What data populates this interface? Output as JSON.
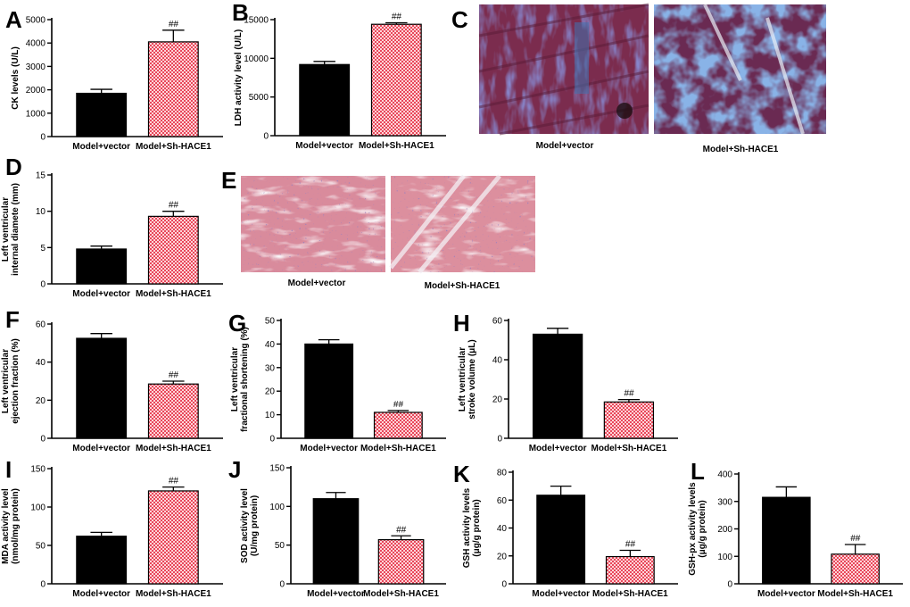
{
  "colors": {
    "control_bar": "#000000",
    "treated_bar": "#e8475a",
    "treated_check": "#ffd4d8",
    "masson_red": "#7b2c4e",
    "masson_blue": "#3f74b3",
    "he_pink": "#d98b9c",
    "he_nuclei": "#5b3c7a"
  },
  "panels": {
    "A": {
      "letter": "A"
    },
    "B": {
      "letter": "B"
    },
    "C": {
      "letter": "C"
    },
    "D": {
      "letter": "D"
    },
    "E": {
      "letter": "E"
    },
    "F": {
      "letter": "F"
    },
    "G": {
      "letter": "G"
    },
    "H": {
      "letter": "H"
    },
    "I": {
      "letter": "I"
    },
    "J": {
      "letter": "J"
    },
    "K": {
      "letter": "K"
    },
    "L": {
      "letter": "L"
    }
  },
  "images": {
    "C": {
      "captions": [
        "Model+vector",
        "Model+Sh-HACE1"
      ],
      "stain": "masson"
    },
    "E": {
      "captions": [
        "Model+vector",
        "Model+Sh-HACE1"
      ],
      "stain": "he"
    }
  },
  "chart_data": [
    {
      "panel": "A",
      "type": "bar",
      "categories": [
        "Model+vector",
        "Model+Sh-HACE1"
      ],
      "values": [
        1850,
        4050
      ],
      "errors": [
        170,
        500
      ],
      "annotations": [
        "",
        "##"
      ],
      "ylabel": "CK levels (U/L)",
      "ylim": [
        0,
        5000
      ],
      "yticks": [
        0,
        1000,
        2000,
        3000,
        4000,
        5000
      ]
    },
    {
      "panel": "B",
      "type": "bar",
      "categories": [
        "Model+vector",
        "Model+Sh-HACE1"
      ],
      "values": [
        9200,
        14400
      ],
      "errors": [
        400,
        200
      ],
      "annotations": [
        "",
        "##"
      ],
      "ylabel": "LDH activity level (U/L)",
      "ylim": [
        0,
        15000
      ],
      "yticks": [
        0,
        5000,
        10000,
        15000
      ]
    },
    {
      "panel": "D",
      "type": "bar",
      "categories": [
        "Model+vector",
        "Model+Sh-HACE1"
      ],
      "values": [
        4.8,
        9.3
      ],
      "errors": [
        0.4,
        0.7
      ],
      "annotations": [
        "",
        "##"
      ],
      "ylabel": [
        "Left ventricular",
        "internal diamete (mm)"
      ],
      "ylim": [
        0,
        15
      ],
      "yticks": [
        0,
        5,
        10,
        15
      ]
    },
    {
      "panel": "F",
      "type": "bar",
      "categories": [
        "Model+vector",
        "Model+Sh-HACE1"
      ],
      "values": [
        52.5,
        28.5
      ],
      "errors": [
        2.5,
        1.5
      ],
      "annotations": [
        "",
        "##"
      ],
      "ylabel": [
        "Left ventricular",
        "ejection fraction (%)"
      ],
      "ylim": [
        0,
        60
      ],
      "yticks": [
        0,
        20,
        40,
        60
      ]
    },
    {
      "panel": "G",
      "type": "bar",
      "categories": [
        "Model+vector",
        "Model+Sh-HACE1"
      ],
      "values": [
        40,
        11
      ],
      "errors": [
        1.8,
        0.8
      ],
      "annotations": [
        "",
        "##"
      ],
      "ylabel": [
        "Left ventricular",
        "fractional shortening (%)"
      ],
      "ylim": [
        0,
        50
      ],
      "yticks": [
        0,
        10,
        20,
        30,
        40,
        50
      ]
    },
    {
      "panel": "H",
      "type": "bar",
      "categories": [
        "Model+vector",
        "Model+Sh-HACE1"
      ],
      "values": [
        53,
        18.5
      ],
      "errors": [
        3,
        1.2
      ],
      "annotations": [
        "",
        "##"
      ],
      "ylabel": [
        "Left ventricular",
        "stroke volume (μL)"
      ],
      "ylim": [
        0,
        60
      ],
      "yticks": [
        0,
        20,
        40,
        60
      ]
    },
    {
      "panel": "I",
      "type": "bar",
      "categories": [
        "Model+vector",
        "Model+Sh-HACE1"
      ],
      "values": [
        62,
        121
      ],
      "errors": [
        5,
        5
      ],
      "annotations": [
        "",
        "##"
      ],
      "ylabel": [
        "MDA activity level",
        "(nmol/mg protein)"
      ],
      "ylim": [
        0,
        150
      ],
      "yticks": [
        0,
        50,
        100,
        150
      ]
    },
    {
      "panel": "J",
      "type": "bar",
      "categories": [
        "Model+vector",
        "Model+Sh-HACE1"
      ],
      "values": [
        110,
        57
      ],
      "errors": [
        8,
        5
      ],
      "annotations": [
        "",
        "##"
      ],
      "ylabel": [
        "SOD activity level",
        "(U/mg protein)"
      ],
      "ylim": [
        0,
        150
      ],
      "yticks": [
        0,
        50,
        100,
        150
      ]
    },
    {
      "panel": "K",
      "type": "bar",
      "categories": [
        "Model+vector",
        "Model+Sh-HACE1"
      ],
      "values": [
        63.5,
        19.5
      ],
      "errors": [
        6.5,
        4.5
      ],
      "annotations": [
        "",
        "##"
      ],
      "ylabel": [
        "GSH activity levels",
        "(μg/g protein)"
      ],
      "ylim": [
        0,
        80
      ],
      "yticks": [
        0,
        20,
        40,
        60,
        80
      ]
    },
    {
      "panel": "L",
      "type": "bar",
      "categories": [
        "Model+vector",
        "Model+Sh-HACE1"
      ],
      "values": [
        315,
        108
      ],
      "errors": [
        38,
        35
      ],
      "annotations": [
        "",
        "##"
      ],
      "ylabel": [
        "GSH-px activity levels",
        "(μg/g protein)"
      ],
      "ylim": [
        0,
        400
      ],
      "yticks": [
        0,
        100,
        200,
        300,
        400
      ]
    }
  ]
}
